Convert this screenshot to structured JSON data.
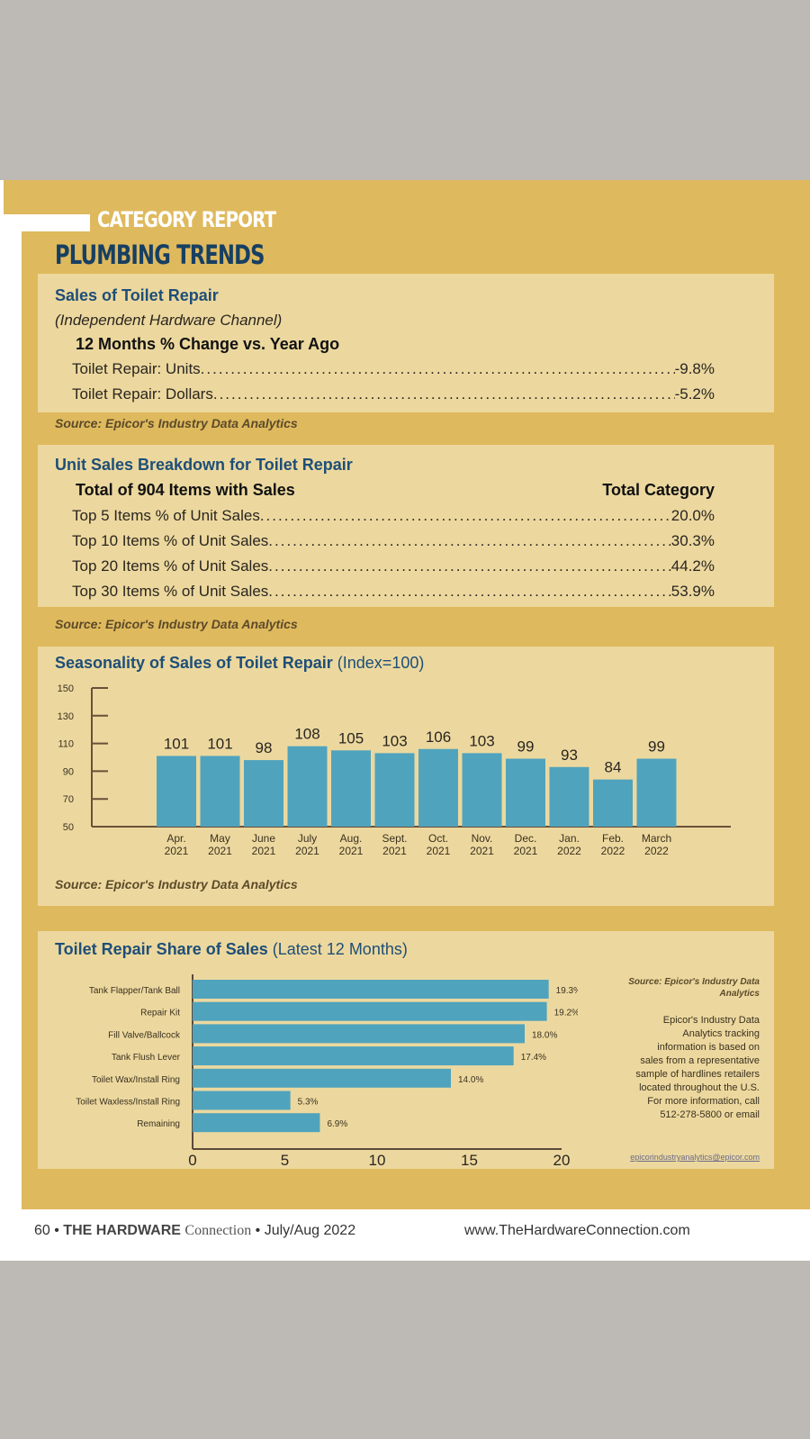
{
  "header": {
    "kicker": "CATEGORY REPORT",
    "title": "PLUMBING TRENDS"
  },
  "sales": {
    "title": "Sales of Toilet Repair",
    "subtitle": "(Independent Hardware Channel)",
    "heading": "12 Months % Change vs. Year Ago",
    "rows": [
      {
        "label": "Toilet Repair: Units",
        "value": "-9.8%"
      },
      {
        "label": "Toilet Repair: Dollars",
        "value": "-5.2%"
      }
    ],
    "source": "Source: Epicor's Industry Data Analytics"
  },
  "breakdown": {
    "title": "Unit Sales Breakdown for Toilet Repair",
    "col_left": "Total of 904 Items with Sales",
    "col_right": "Total Category",
    "rows": [
      {
        "label": "Top 5 Items % of Unit Sales",
        "value": "20.0%"
      },
      {
        "label": "Top 10 Items % of Unit Sales",
        "value": "30.3%"
      },
      {
        "label": "Top 20 Items % of Unit Sales",
        "value": "44.2%"
      },
      {
        "label": "Top 30 Items % of Unit Sales",
        "value": "53.9%"
      }
    ],
    "source": "Source: Epicor's Industry Data Analytics"
  },
  "chart_data": [
    {
      "type": "bar",
      "title": "Seasonality of Sales of Toilet Repair",
      "subtitle": "(Index=100)",
      "categories": [
        [
          "Apr.",
          "2021"
        ],
        [
          "May",
          "2021"
        ],
        [
          "June",
          "2021"
        ],
        [
          "July",
          "2021"
        ],
        [
          "Aug.",
          "2021"
        ],
        [
          "Sept.",
          "2021"
        ],
        [
          "Oct.",
          "2021"
        ],
        [
          "Nov.",
          "2021"
        ],
        [
          "Dec.",
          "2021"
        ],
        [
          "Jan.",
          "2022"
        ],
        [
          "Feb.",
          "2022"
        ],
        [
          "March",
          "2022"
        ]
      ],
      "values": [
        101,
        101,
        98,
        108,
        105,
        103,
        106,
        103,
        99,
        93,
        84,
        99
      ],
      "yticks": [
        50,
        70,
        90,
        110,
        130,
        150
      ],
      "ylim": [
        50,
        150
      ],
      "xlabel": "",
      "ylabel": "",
      "bar_color": "#50a3bd",
      "source": "Source: Epicor's Industry Data Analytics"
    },
    {
      "type": "bar",
      "orientation": "horizontal",
      "title": "Toilet Repair Share of Sales",
      "subtitle": "(Latest 12 Months)",
      "categories": [
        "Tank Flapper/Tank Ball",
        "Repair Kit",
        "Fill Valve/Ballcock",
        "Tank Flush Lever",
        "Toilet Wax/Install Ring",
        "Toilet Waxless/Install Ring",
        "Remaining"
      ],
      "values": [
        19.3,
        19.2,
        18.0,
        17.4,
        14.0,
        5.3,
        6.9
      ],
      "labels": [
        "19.3%",
        "19.2%",
        "18.0%",
        "17.4%",
        "14.0%",
        "5.3%",
        "6.9%"
      ],
      "xticks": [
        0,
        5,
        10,
        15,
        20
      ],
      "xlim": [
        0,
        20
      ],
      "bar_color": "#50a3bd",
      "source": "Source: Epicor's Industry Data Analytics",
      "note": [
        "Epicor's Industry Data",
        "Analytics tracking",
        "information is based on",
        "sales from a representative",
        "sample of hardlines retailers",
        "located throughout the U.S.",
        "For more information, call",
        "512-278-5800 or email"
      ],
      "email": "epicorindustryanalytics@epicor.com"
    }
  ],
  "footer": {
    "left_page": "60",
    "left_brand": "THE HARDWARE",
    "left_brand2": "Connection",
    "left_date": "July/Aug 2022",
    "right": "www.TheHardwareConnection.com"
  }
}
